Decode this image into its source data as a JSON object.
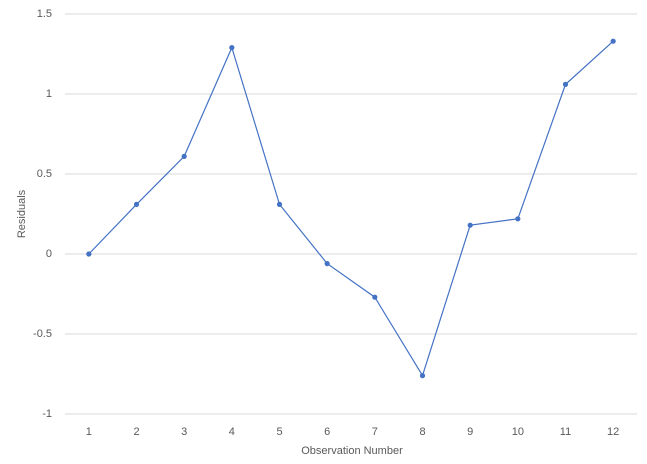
{
  "chart_data": {
    "type": "line",
    "x_label": "Observation Number",
    "y_label": "Residuals",
    "categories": [
      "1",
      "2",
      "3",
      "4",
      "5",
      "6",
      "7",
      "8",
      "9",
      "10",
      "11",
      "12"
    ],
    "series": [
      {
        "name": "Residuals",
        "color": "#4472c4",
        "values": [
          0,
          0.31,
          0.61,
          1.29,
          0.31,
          -0.06,
          -0.27,
          -0.76,
          0.18,
          0.22,
          1.06,
          1.33
        ]
      }
    ],
    "ylim": [
      -1,
      1.5
    ],
    "yticks": [
      -1,
      -0.5,
      0,
      0.5,
      1,
      1.5
    ],
    "grid": true,
    "legend": false
  }
}
